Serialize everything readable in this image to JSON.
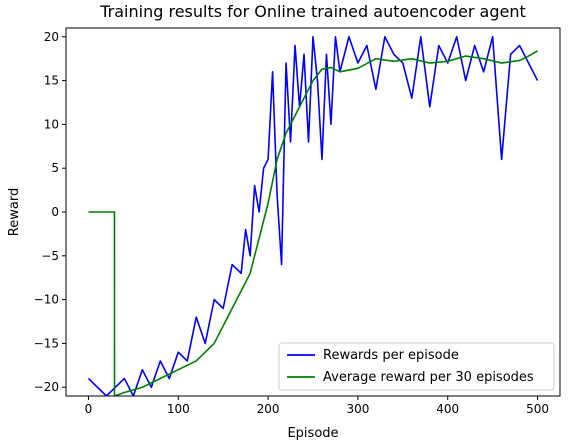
{
  "chart_data": {
    "type": "line",
    "title": "Training results for Online trained autoencoder agent",
    "xlabel": "Episode",
    "ylabel": "Reward",
    "xlim": [
      -25,
      525
    ],
    "ylim": [
      -21,
      21
    ],
    "xticks": [
      0,
      100,
      200,
      300,
      400,
      500
    ],
    "yticks": [
      -20,
      -15,
      -10,
      -5,
      0,
      5,
      10,
      15,
      20
    ],
    "grid": false,
    "legend_position": "lower-right",
    "series": [
      {
        "name": "Rewards per episode",
        "color": "#0000ff",
        "x": [
          0,
          10,
          20,
          30,
          40,
          50,
          60,
          70,
          80,
          90,
          100,
          110,
          120,
          130,
          140,
          150,
          160,
          170,
          175,
          180,
          185,
          190,
          195,
          200,
          205,
          210,
          215,
          220,
          225,
          230,
          235,
          240,
          245,
          250,
          255,
          260,
          265,
          270,
          275,
          280,
          290,
          300,
          310,
          320,
          330,
          340,
          350,
          360,
          370,
          380,
          390,
          400,
          410,
          420,
          430,
          440,
          450,
          460,
          470,
          480,
          490,
          500
        ],
        "y": [
          -19,
          -20,
          -21,
          -20,
          -19,
          -21,
          -18,
          -20,
          -17,
          -19,
          -16,
          -17,
          -12,
          -15,
          -10,
          -11,
          -6,
          -7,
          -2,
          -5,
          3,
          0,
          5,
          6,
          16,
          2,
          -6,
          17,
          8,
          19,
          12,
          18,
          8,
          20,
          15,
          6,
          18,
          10,
          20,
          16,
          20,
          17,
          19,
          14,
          20,
          18,
          17,
          13,
          20,
          12,
          19,
          17,
          20,
          15,
          19,
          16,
          20,
          6,
          18,
          19,
          17,
          15
        ]
      },
      {
        "name": "Average reward per 30 episodes",
        "color": "#008000",
        "x": [
          0,
          29,
          29.01,
          40,
          60,
          80,
          100,
          120,
          130,
          140,
          150,
          160,
          170,
          180,
          190,
          200,
          210,
          220,
          230,
          240,
          250,
          260,
          270,
          280,
          290,
          300,
          320,
          340,
          360,
          380,
          400,
          420,
          440,
          460,
          480,
          490,
          500
        ],
        "y": [
          0,
          0,
          -21,
          -20.6,
          -20,
          -19,
          -18,
          -17,
          -16,
          -15,
          -13,
          -11,
          -9,
          -7,
          -3,
          1,
          6,
          9,
          11,
          13,
          15,
          16.3,
          16.5,
          16,
          16.2,
          16.4,
          17.5,
          17.2,
          17.5,
          17,
          17.2,
          17.8,
          17.5,
          17,
          17.3,
          17.8,
          18.4
        ]
      }
    ]
  }
}
